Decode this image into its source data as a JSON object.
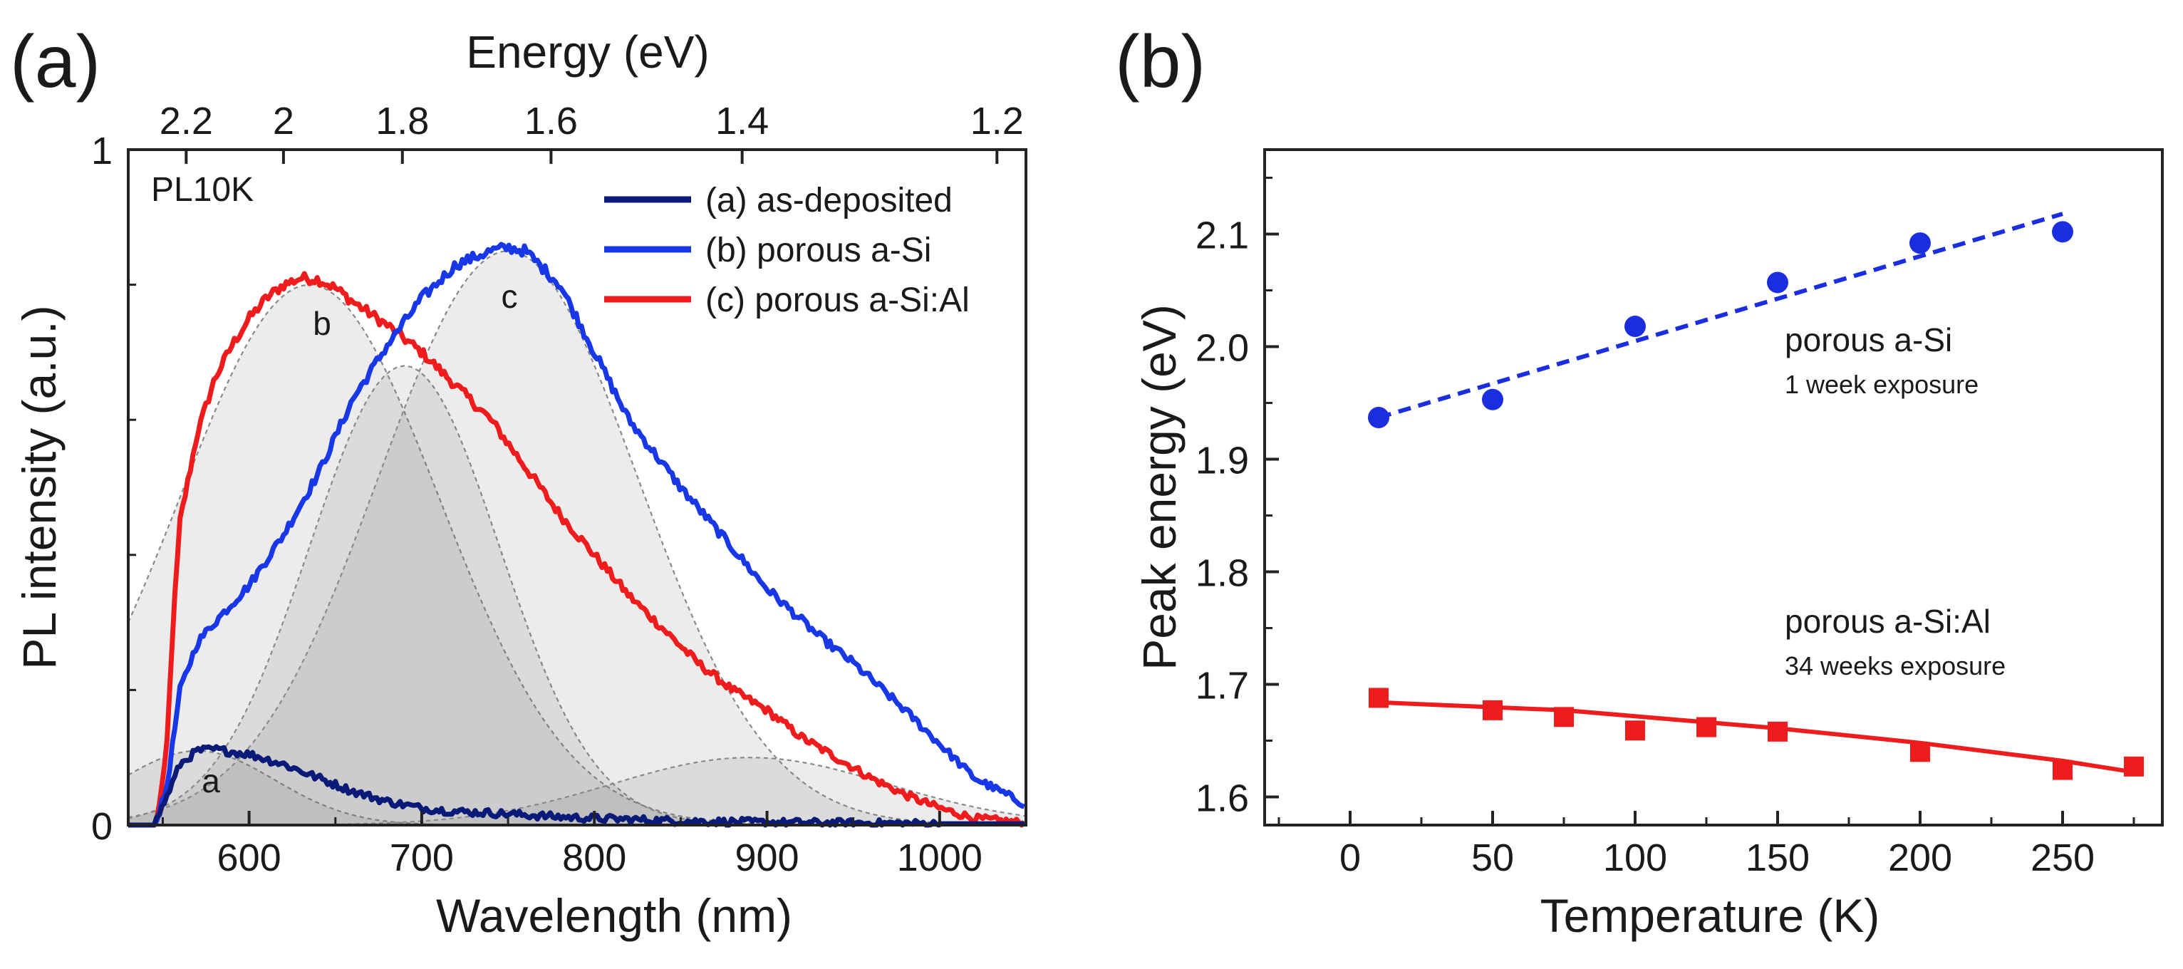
{
  "chart_data": [
    {
      "panel_label": "(a)",
      "type": "line",
      "xlabel": "Wavelength (nm)",
      "ylabel": "PL intensity (a.u.)",
      "xlim": [
        530,
        1050
      ],
      "ylim": [
        0,
        1
      ],
      "xticks": [
        600,
        700,
        800,
        900,
        1000
      ],
      "yticks": [
        0,
        1
      ],
      "top_axis": {
        "label": "Energy (eV)",
        "ticks": [
          2.2,
          2,
          1.8,
          1.6,
          1.4,
          1.2
        ],
        "tick_labels": [
          "2.2",
          "2",
          "1.8",
          "1.6",
          "1.4",
          "1.2"
        ]
      },
      "annotation": "PL10K",
      "legend_position": "top-right",
      "series": [
        {
          "name": "(a) as-deposited",
          "color": "#0a1a78",
          "curve_label": "a",
          "x": [
            530,
            545,
            552,
            560,
            570,
            580,
            600,
            620,
            640,
            660,
            680,
            700,
            720,
            740,
            760,
            780,
            800,
            850,
            900,
            950,
            1000,
            1050
          ],
          "y": [
            0,
            0,
            0.04,
            0.09,
            0.11,
            0.112,
            0.105,
            0.09,
            0.07,
            0.05,
            0.035,
            0.025,
            0.02,
            0.018,
            0.015,
            0.012,
            0.01,
            0.006,
            0.004,
            0.003,
            0.002,
            0.002
          ]
        },
        {
          "name": "(b) porous a-Si",
          "color": "#1838e8",
          "curve_label": "c",
          "x": [
            530,
            545,
            552,
            560,
            570,
            580,
            600,
            620,
            640,
            660,
            680,
            700,
            720,
            740,
            750,
            760,
            780,
            800,
            820,
            850,
            880,
            900,
            930,
            950,
            980,
            1000,
            1020,
            1050
          ],
          "y": [
            0,
            0,
            0.05,
            0.2,
            0.27,
            0.3,
            0.355,
            0.43,
            0.52,
            0.63,
            0.71,
            0.78,
            0.83,
            0.85,
            0.855,
            0.85,
            0.8,
            0.7,
            0.6,
            0.5,
            0.41,
            0.35,
            0.28,
            0.24,
            0.17,
            0.12,
            0.07,
            0.03
          ]
        },
        {
          "name": "(c) porous a-Si:Al",
          "color": "#ee1c1c",
          "curve_label": "b",
          "x": [
            530,
            546,
            552,
            556,
            560,
            570,
            580,
            590,
            600,
            610,
            620,
            630,
            640,
            650,
            660,
            680,
            700,
            720,
            740,
            760,
            780,
            800,
            820,
            840,
            860,
            880,
            900,
            920,
            940,
            960,
            980,
            1000,
            1020,
            1050
          ],
          "y": [
            0,
            0,
            0.1,
            0.3,
            0.45,
            0.58,
            0.66,
            0.71,
            0.75,
            0.78,
            0.8,
            0.81,
            0.808,
            0.795,
            0.775,
            0.74,
            0.7,
            0.65,
            0.6,
            0.53,
            0.46,
            0.4,
            0.34,
            0.29,
            0.24,
            0.2,
            0.17,
            0.13,
            0.1,
            0.07,
            0.045,
            0.025,
            0.01,
            0.003
          ]
        }
      ],
      "fit_components": [
        {
          "center": 570,
          "width": 45,
          "amplitude": 0.11
        },
        {
          "center": 635,
          "width": 75,
          "amplitude": 0.8
        },
        {
          "center": 690,
          "width": 55,
          "amplitude": 0.68
        },
        {
          "center": 750,
          "width": 75,
          "amplitude": 0.85
        },
        {
          "center": 890,
          "width": 80,
          "amplitude": 0.1
        }
      ]
    },
    {
      "panel_label": "(b)",
      "type": "scatter",
      "xlabel": "Temperature (K)",
      "ylabel": "Peak energy (eV)",
      "xlim": [
        -30,
        285
      ],
      "ylim": [
        1.575,
        2.175
      ],
      "xticks": [
        0,
        50,
        100,
        150,
        200,
        250
      ],
      "yticks": [
        1.6,
        1.7,
        1.8,
        1.9,
        2.0,
        2.1
      ],
      "ytick_labels": [
        "1.6",
        "1.7",
        "1.8",
        "1.9",
        "2.0",
        "2.1"
      ],
      "series": [
        {
          "name": "porous a-Si",
          "sublabel": "1 week exposure",
          "marker": "circle",
          "color": "#1a2ee0",
          "x": [
            10,
            50,
            100,
            150,
            200,
            250
          ],
          "y": [
            1.937,
            1.953,
            2.018,
            2.057,
            2.092,
            2.102
          ],
          "fit": {
            "style": "dashed",
            "x": [
              10,
              250
            ],
            "y": [
              1.937,
              2.118
            ]
          }
        },
        {
          "name": "porous a-Si:Al",
          "sublabel": "34 weeks exposure",
          "marker": "square",
          "color": "#ee1c1c",
          "x": [
            10,
            50,
            75,
            100,
            125,
            150,
            200,
            250,
            275
          ],
          "y": [
            1.688,
            1.677,
            1.671,
            1.659,
            1.662,
            1.658,
            1.64,
            1.624,
            1.627
          ],
          "fit": {
            "style": "solid",
            "x": [
              10,
              75,
              150,
              200,
              250,
              275
            ],
            "y": [
              1.684,
              1.677,
              1.661,
              1.648,
              1.632,
              1.622
            ]
          }
        }
      ]
    }
  ]
}
